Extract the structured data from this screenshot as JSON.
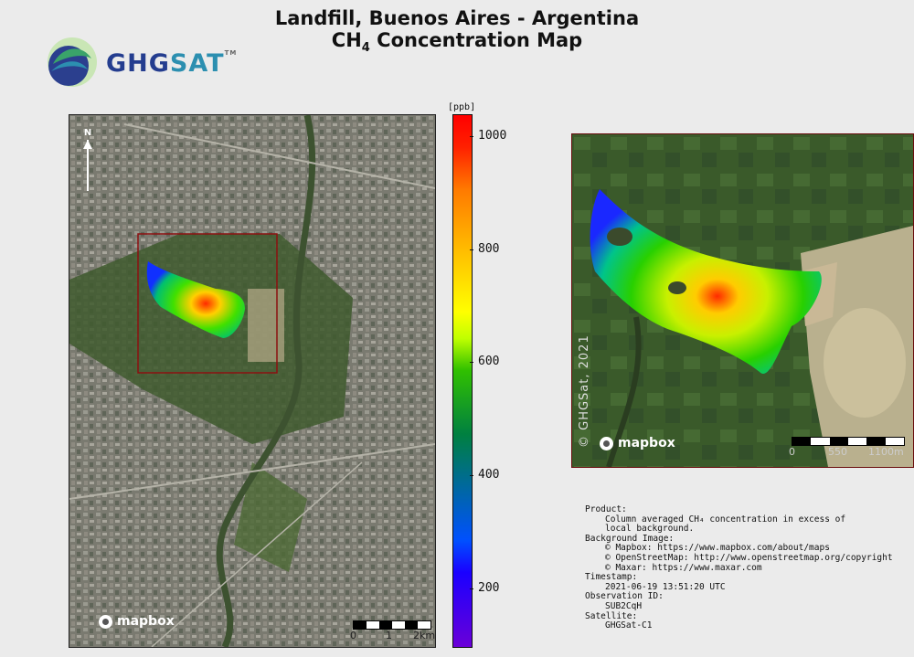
{
  "title_line1": "Landfill, Buenos Aires - Argentina",
  "title_line2_prefix": "CH",
  "title_line2_sub": "4",
  "title_line2_suffix": " Concentration Map",
  "logo": {
    "text_a": "GHG",
    "text_b": "SAT",
    "tm": "TM"
  },
  "north_label": "N",
  "mapbox_label": "mapbox",
  "left_scale": {
    "labels": [
      "0",
      "1",
      "2km"
    ]
  },
  "right_scale": {
    "labels": [
      "0",
      "550",
      "1100m"
    ]
  },
  "copyright": "© GHGSat, 2021",
  "colorbar": {
    "unit": "[ppb]",
    "min": 100,
    "max": 1040,
    "ticks": [
      "200",
      "400",
      "600",
      "800",
      "1000"
    ],
    "tick_values": [
      200,
      400,
      600,
      800,
      1000
    ]
  },
  "info": [
    {
      "key": "Product:",
      "lines": [
        "Column averaged CH₄ concentration in excess of",
        "local background."
      ]
    },
    {
      "key": "Background Image:",
      "lines": [
        "© Mapbox: https://www.mapbox.com/about/maps",
        "© OpenStreetMap: http://www.openstreetmap.org/copyright",
        "© Maxar: https://www.maxar.com"
      ]
    },
    {
      "key": "Timestamp:",
      "lines": [
        "2021-06-19 13:51:20 UTC"
      ]
    },
    {
      "key": "Observation ID:",
      "lines": [
        "SUB2CqH"
      ]
    },
    {
      "key": "Satellite:",
      "lines": [
        "GHGSat-C1"
      ]
    }
  ]
}
